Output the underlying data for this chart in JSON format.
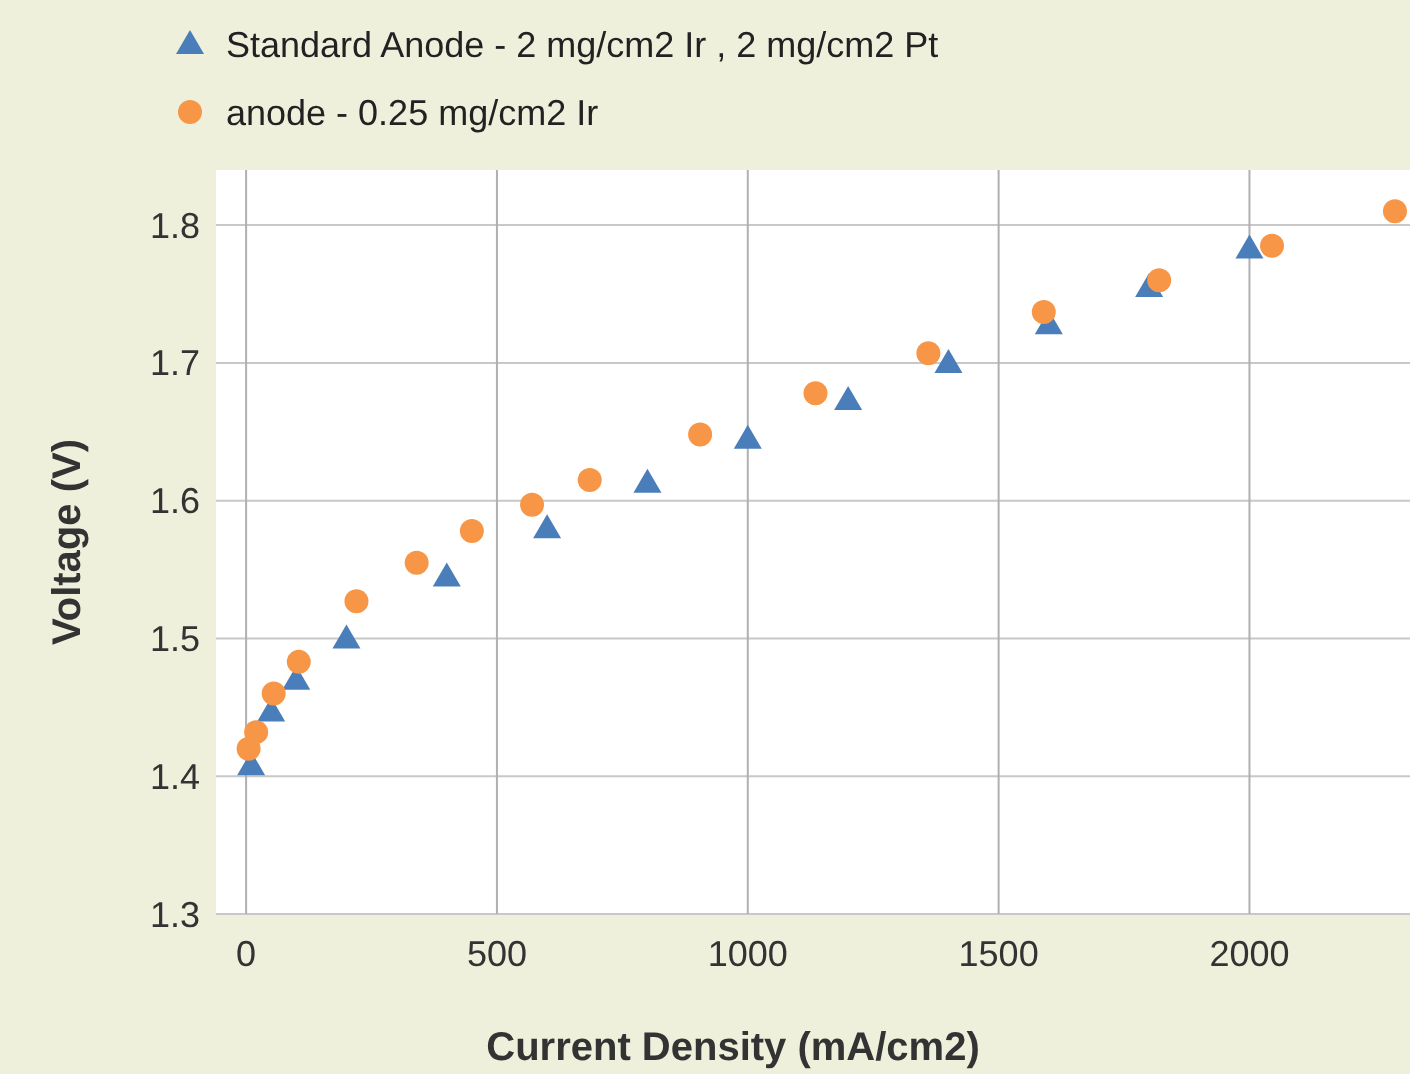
{
  "chart_data": {
    "type": "scatter",
    "xlabel": "Current Density (mA/cm2)",
    "ylabel": "Voltage (V)",
    "xlim": [
      -60,
      2320
    ],
    "xticks": [
      0,
      500,
      1000,
      1500,
      2000
    ],
    "ylim": [
      1.3,
      1.84
    ],
    "yticks": [
      1.3,
      1.4,
      1.5,
      1.6,
      1.7,
      1.8
    ],
    "grid": true,
    "legend": "top",
    "series": [
      {
        "name": "Standard Anode - 2 mg/cm2 Ir , 2 mg/cm2 Pt",
        "color": "#4a7ebb",
        "marker": "triangle",
        "x": [
          10,
          50,
          100,
          200,
          400,
          600,
          800,
          1000,
          1200,
          1400,
          1600,
          1800,
          2000
        ],
        "values": [
          1.408,
          1.447,
          1.47,
          1.5,
          1.545,
          1.58,
          1.613,
          1.645,
          1.673,
          1.7,
          1.728,
          1.755,
          1.783
        ]
      },
      {
        "name": "anode   - 0.25 mg/cm2 Ir",
        "color": "#f79646",
        "marker": "circle",
        "x": [
          5,
          20,
          55,
          105,
          220,
          340,
          450,
          570,
          685,
          905,
          1135,
          1360,
          1590,
          1820,
          2045,
          2290
        ],
        "values": [
          1.42,
          1.432,
          1.46,
          1.483,
          1.527,
          1.555,
          1.578,
          1.597,
          1.615,
          1.648,
          1.678,
          1.707,
          1.737,
          1.76,
          1.785,
          1.81
        ]
      }
    ]
  }
}
